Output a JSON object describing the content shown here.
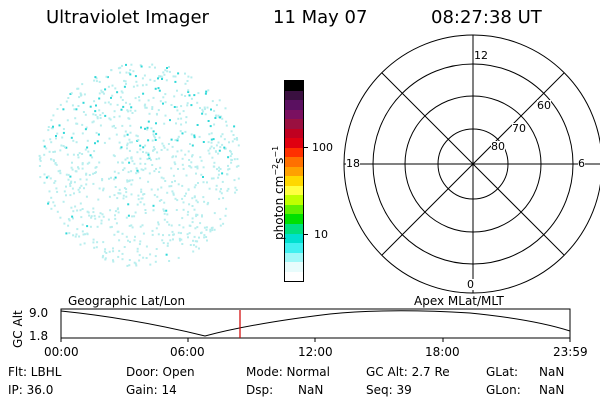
{
  "header": {
    "title": "Ultraviolet Imager",
    "date": "11 May 07",
    "time": "08:27:38 UT"
  },
  "colorbar": {
    "label_main": "photon cm",
    "label_exp1": "−2",
    "label_mid": "s",
    "label_exp2": "−1",
    "ticks": [
      "100",
      "10"
    ],
    "colors": [
      "#000000",
      "#3a1040",
      "#5a1060",
      "#7a1060",
      "#9a1040",
      "#c00020",
      "#e00010",
      "#ff3000",
      "#ff7000",
      "#ffa000",
      "#ffd800",
      "#ffff40",
      "#c0ff00",
      "#60f000",
      "#00e000",
      "#00e080",
      "#00e0d0",
      "#40f0f0",
      "#a0f8f8",
      "#e8fcfc",
      "#ffffff"
    ]
  },
  "polar": {
    "labels": {
      "top": "12",
      "bottom": "0",
      "left": "18",
      "right": "6",
      "ring60": "60",
      "ring70": "70",
      "ring80": "80"
    }
  },
  "orbit": {
    "ylabel": "GC Alt",
    "ytick_top": "9.0",
    "ytick_bottom": "1.8",
    "left_caption": "Geographic Lat/Lon",
    "right_caption": "Apex MLat/MLT",
    "xticks": [
      "00:00",
      "06:00",
      "12:00",
      "18:00",
      "23:59"
    ]
  },
  "footer": {
    "flt": "Flt: LBHL",
    "ip": "IP: 36.0",
    "door": "Door: Open",
    "gain": "Gain: 14",
    "mode": "Mode: Normal",
    "dsp_label": "Dsp:",
    "dsp_value": "NaN",
    "gcalt": "GC Alt: 2.7 Re",
    "seq": "Seq: 39",
    "glat_label": "GLat:",
    "glat_value": "NaN",
    "glon_label": "GLon:",
    "glon_value": "NaN"
  },
  "image_disk": {
    "speckle_color": "#30d8d8",
    "faint_color": "#b8eeee"
  }
}
